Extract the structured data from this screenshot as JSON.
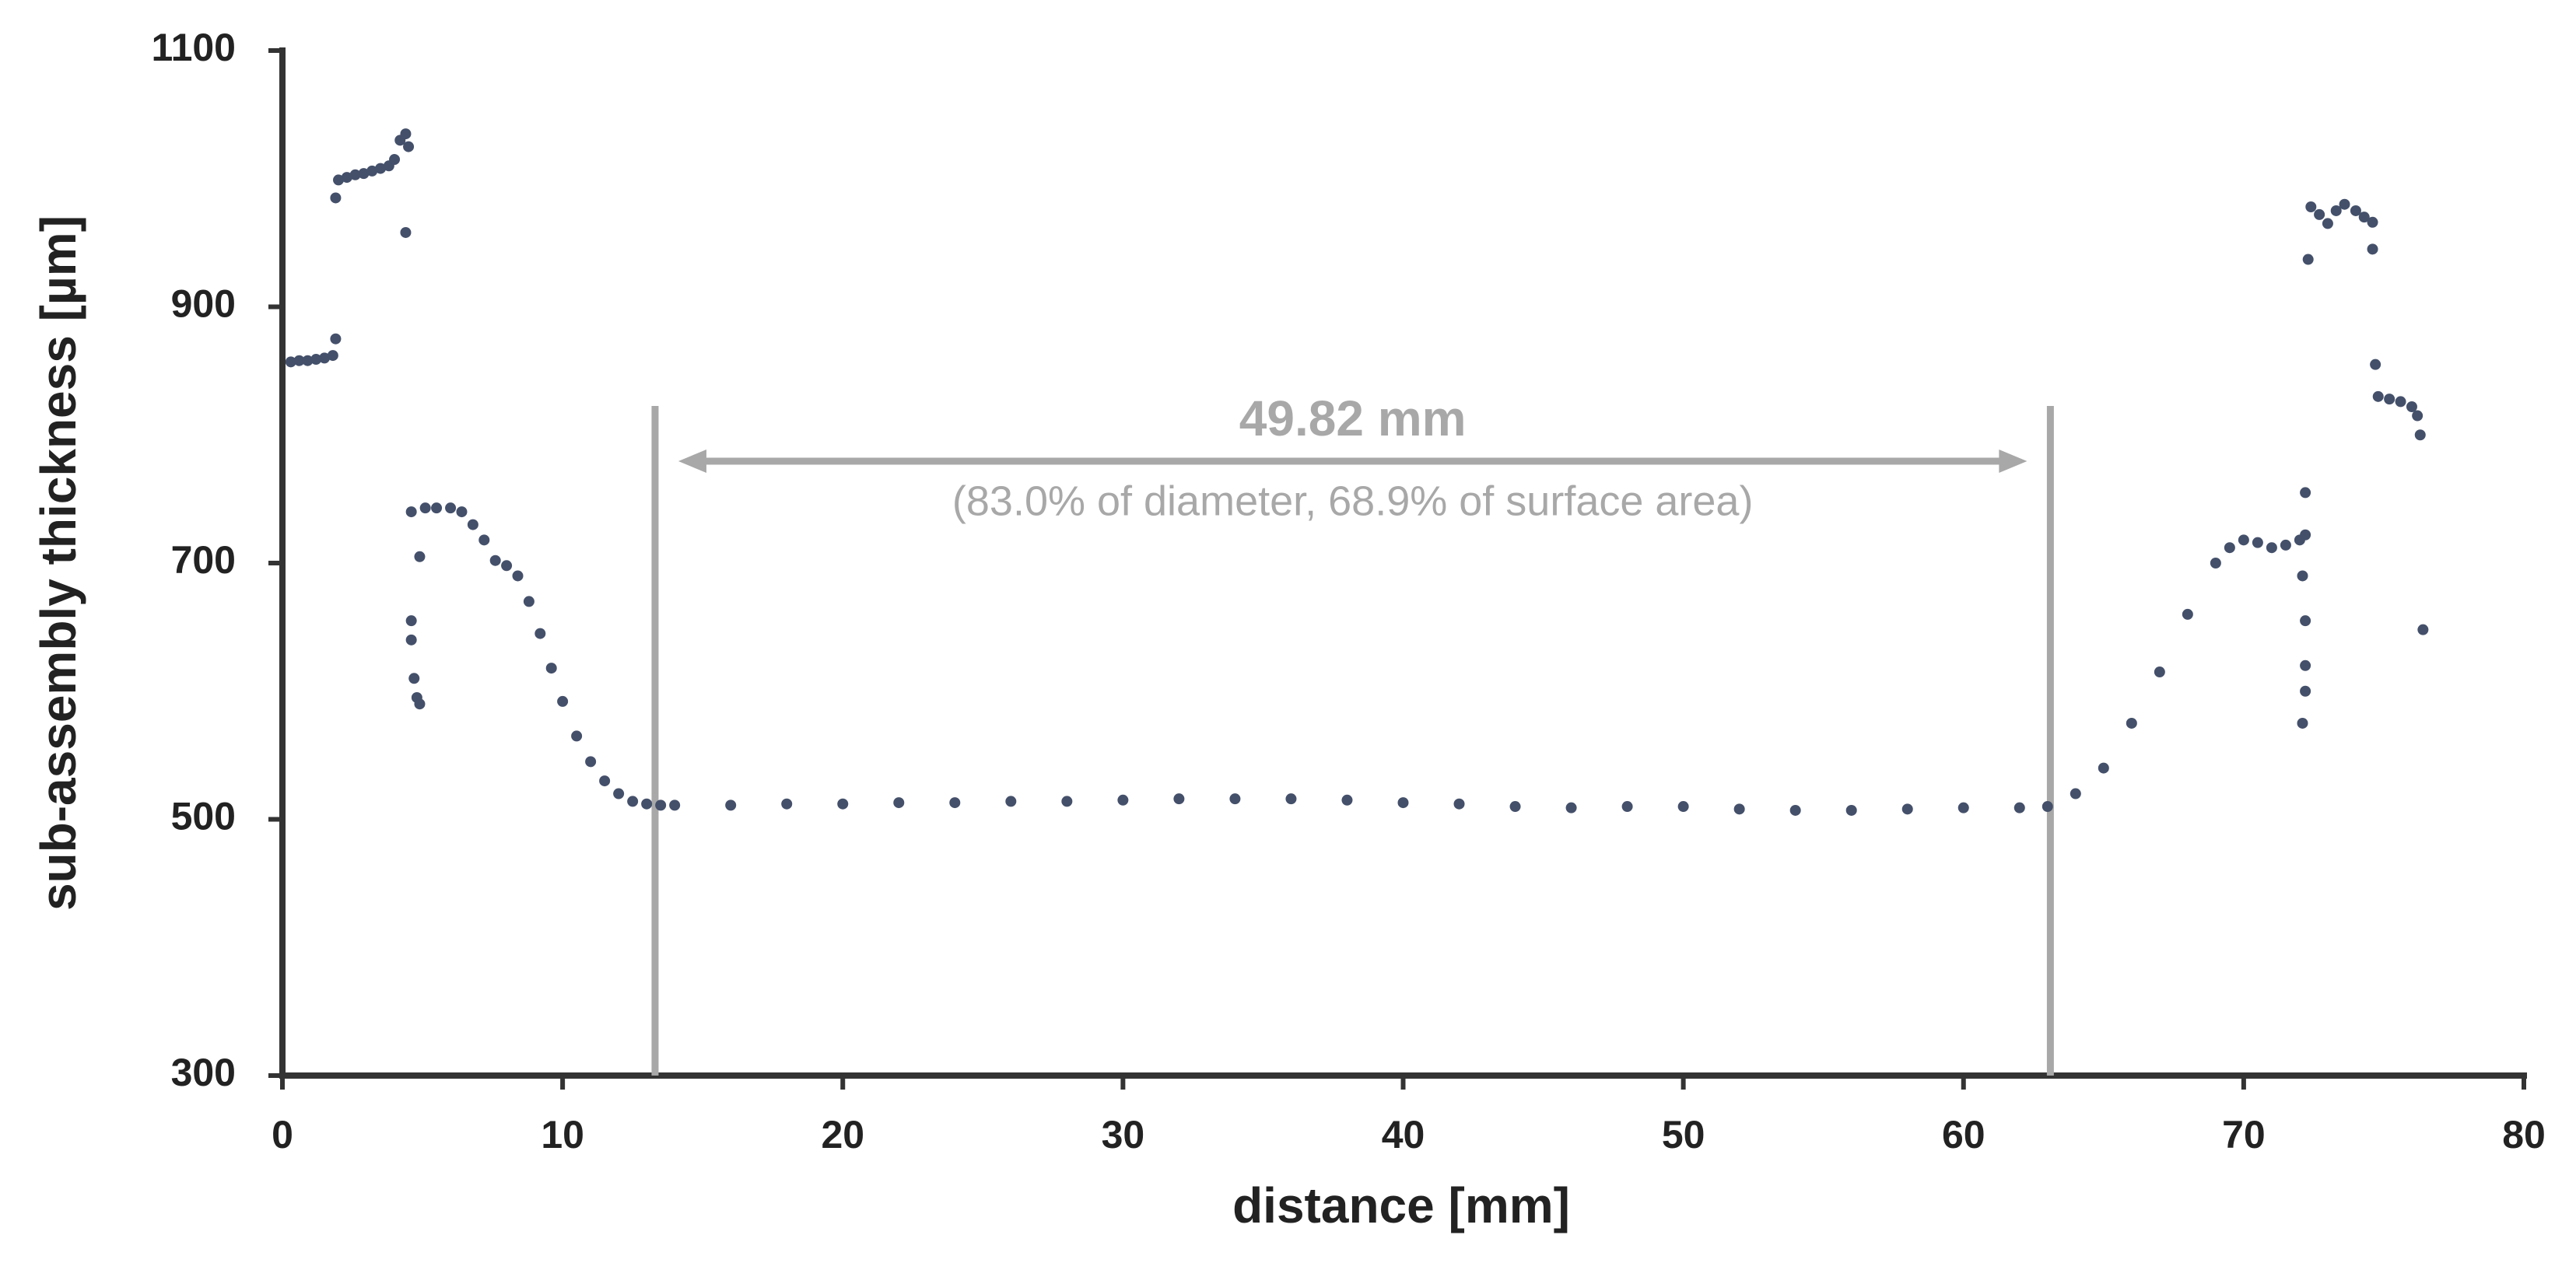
{
  "chart_data": {
    "type": "scatter",
    "xlabel": "distance [mm]",
    "ylabel": "sub-assembly thickness [µm]",
    "x": [
      0.3,
      0.6,
      0.9,
      1.2,
      1.5,
      1.8,
      1.9,
      1.9,
      2.0,
      2.3,
      2.6,
      2.9,
      3.2,
      3.5,
      3.8,
      4.0,
      4.2,
      4.4,
      4.5,
      4.4,
      4.6,
      4.6,
      4.6,
      4.7,
      4.8,
      4.9,
      4.9,
      5.1,
      5.5,
      6.0,
      6.4,
      6.8,
      7.2,
      7.6,
      8.0,
      8.4,
      8.8,
      9.2,
      9.6,
      10.0,
      10.5,
      11.0,
      11.5,
      12.0,
      12.5,
      13.0,
      13.5,
      14,
      16,
      18,
      20,
      22,
      24,
      26,
      28,
      30,
      32,
      34,
      36,
      38,
      40,
      42,
      44,
      46,
      48,
      50,
      52,
      54,
      56,
      58,
      60,
      62,
      63,
      64,
      65,
      66,
      67,
      68,
      69,
      69.5,
      70,
      70.5,
      71,
      71.5,
      72,
      72.2,
      72.2,
      72.1,
      72.2,
      72.2,
      72.2,
      72.1,
      72.3,
      72.4,
      72.7,
      73,
      73.3,
      73.6,
      74,
      74.3,
      74.6,
      74.6,
      74.7,
      74.8,
      75.2,
      75.6,
      76,
      76.2,
      76.3,
      76.4
    ],
    "values": [
      857,
      858,
      858,
      859,
      860,
      862,
      875,
      985,
      999,
      1001,
      1003,
      1004,
      1006,
      1008,
      1010,
      1015,
      1030,
      1035,
      1025,
      958,
      740,
      655,
      640,
      610,
      595,
      590,
      705,
      743,
      743,
      743,
      740,
      730,
      718,
      702,
      698,
      690,
      670,
      645,
      618,
      592,
      565,
      545,
      530,
      520,
      514,
      512,
      511,
      511,
      511,
      512,
      512,
      513,
      513,
      514,
      514,
      515,
      516,
      516,
      516,
      515,
      513,
      512,
      510,
      509,
      510,
      510,
      508,
      507,
      507,
      508,
      509,
      509,
      510,
      520,
      540,
      575,
      615,
      660,
      700,
      712,
      718,
      716,
      712,
      714,
      718,
      722,
      755,
      690,
      655,
      620,
      600,
      575,
      937,
      978,
      972,
      965,
      975,
      980,
      975,
      970,
      966,
      945,
      855,
      830,
      828,
      826,
      822,
      815,
      800,
      648
    ],
    "color": "#44506a",
    "xlim": [
      0,
      80
    ],
    "xticks": [
      0,
      10,
      20,
      30,
      40,
      50,
      60,
      70,
      80
    ],
    "ylim": [
      300,
      1100
    ],
    "yticks": [
      300,
      500,
      700,
      900,
      1100
    ],
    "vlines": [
      13.3,
      63.1
    ],
    "span_label": "49.82 mm",
    "span_note": "(83.0% of diameter, 68.9% of surface area)"
  }
}
